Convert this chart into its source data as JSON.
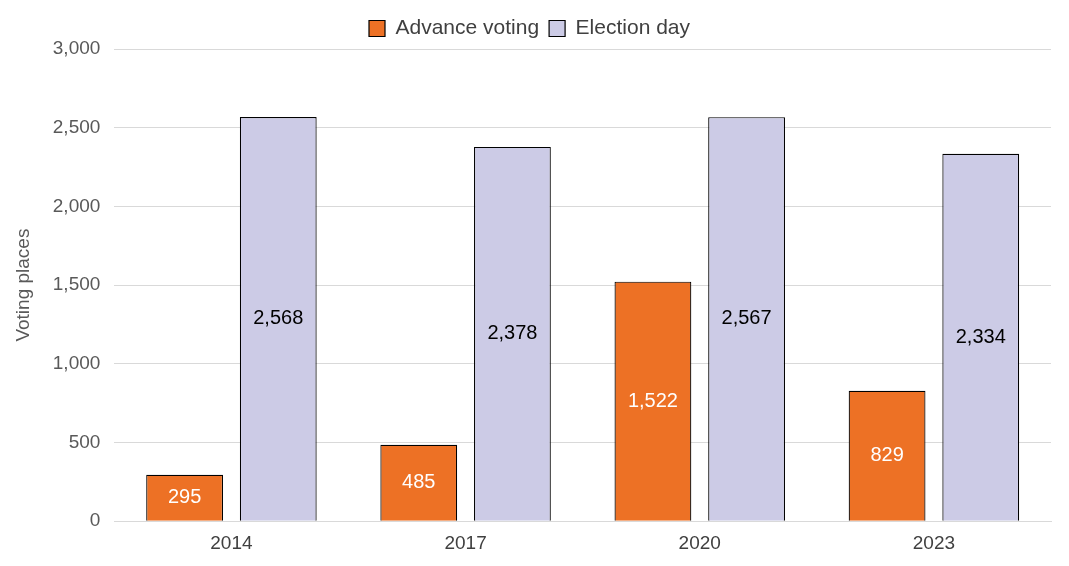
{
  "chart_data": {
    "type": "bar",
    "ylabel": "Voting places",
    "categories": [
      "2014",
      "2017",
      "2020",
      "2023"
    ],
    "series": [
      {
        "name": "Advance voting",
        "color": "#ed7125",
        "values": [
          295,
          485,
          1522,
          829
        ],
        "value_labels": [
          "295",
          "485",
          "1,522",
          "829"
        ]
      },
      {
        "name": "Election day",
        "color": "#cccbe6",
        "values": [
          2568,
          2378,
          2567,
          2334
        ],
        "value_labels": [
          "2,568",
          "2,378",
          "2,567",
          "2,334"
        ]
      }
    ],
    "ylim": [
      0,
      3000
    ],
    "yticks": [
      {
        "value": 0,
        "label": "0"
      },
      {
        "value": 500,
        "label": "500"
      },
      {
        "value": 1000,
        "label": "1,000"
      },
      {
        "value": 1500,
        "label": "1,500"
      },
      {
        "value": 2000,
        "label": "2,000"
      },
      {
        "value": 2500,
        "label": "2,500"
      },
      {
        "value": 3000,
        "label": "3,000"
      }
    ],
    "grid": "y",
    "legend": "top"
  }
}
